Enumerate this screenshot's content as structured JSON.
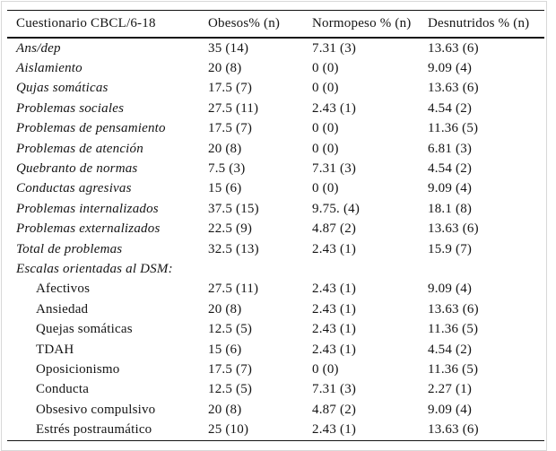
{
  "page": {
    "background_color": "#ffffff",
    "frame_color": "#d8d8d8",
    "rule_color": "#141414",
    "text_color": "#141414"
  },
  "table": {
    "columns": [
      {
        "label": "Cuestionario CBCL/6-18"
      },
      {
        "label": "Obesos% (n)"
      },
      {
        "label": "Normopeso % (n)"
      },
      {
        "label": "Desnutridos % (n)"
      }
    ],
    "rows": [
      {
        "label": "Ans/dep",
        "italic": true,
        "indent": false,
        "values": [
          "35 (14)",
          "7.31 (3)",
          "13.63 (6)"
        ]
      },
      {
        "label": "Aislamiento",
        "italic": true,
        "indent": false,
        "values": [
          "20 (8)",
          "0 (0)",
          "9.09 (4)"
        ]
      },
      {
        "label": "Qujas somáticas",
        "italic": true,
        "indent": false,
        "values": [
          "17.5 (7)",
          "0 (0)",
          "13.63 (6)"
        ]
      },
      {
        "label": "Problemas sociales",
        "italic": true,
        "indent": false,
        "values": [
          "27.5 (11)",
          "2.43 (1)",
          "4.54 (2)"
        ]
      },
      {
        "label": "Problemas de pensamiento",
        "italic": true,
        "indent": false,
        "values": [
          "17.5 (7)",
          "0 (0)",
          "11.36 (5)"
        ]
      },
      {
        "label": "Problemas de atención",
        "italic": true,
        "indent": false,
        "values": [
          "20 (8)",
          "0 (0)",
          "6.81 (3)"
        ]
      },
      {
        "label": "Quebranto de normas",
        "italic": true,
        "indent": false,
        "values": [
          "7.5 (3)",
          "7.31 (3)",
          "4.54 (2)"
        ]
      },
      {
        "label": "Conductas agresivas",
        "italic": true,
        "indent": false,
        "values": [
          "15 (6)",
          "0 (0)",
          "9.09 (4)"
        ]
      },
      {
        "label": "Problemas internalizados",
        "italic": true,
        "indent": false,
        "values": [
          "37.5 (15)",
          "9.75. (4)",
          "18.1 (8)"
        ]
      },
      {
        "label": "Problemas externalizados",
        "italic": true,
        "indent": false,
        "values": [
          "22.5 (9)",
          "4.87 (2)",
          "13.63 (6)"
        ]
      },
      {
        "label": "Total de problemas",
        "italic": true,
        "indent": false,
        "values": [
          "32.5 (13)",
          "2.43 (1)",
          "15.9 (7)"
        ]
      },
      {
        "label": "Escalas orientadas al DSM:",
        "italic": true,
        "indent": false,
        "values": [
          "",
          "",
          ""
        ]
      },
      {
        "label": "Afectivos",
        "italic": false,
        "indent": true,
        "values": [
          "27.5 (11)",
          "2.43 (1)",
          "9.09 (4)"
        ]
      },
      {
        "label": "Ansiedad",
        "italic": false,
        "indent": true,
        "values": [
          "20 (8)",
          "2.43 (1)",
          "13.63 (6)"
        ]
      },
      {
        "label": "Quejas somáticas",
        "italic": false,
        "indent": true,
        "values": [
          "12.5 (5)",
          "2.43 (1)",
          "11.36 (5)"
        ]
      },
      {
        "label": "TDAH",
        "italic": false,
        "indent": true,
        "values": [
          "15 (6)",
          "2.43 (1)",
          "4.54 (2)"
        ]
      },
      {
        "label": "Oposicionismo",
        "italic": false,
        "indent": true,
        "values": [
          "17.5 (7)",
          "0 (0)",
          "11.36 (5)"
        ]
      },
      {
        "label": "Conducta",
        "italic": false,
        "indent": true,
        "values": [
          "12.5 (5)",
          "7.31 (3)",
          "2.27 (1)"
        ]
      },
      {
        "label": "Obsesivo compulsivo",
        "italic": false,
        "indent": true,
        "values": [
          "20 (8)",
          "4.87 (2)",
          "9.09 (4)"
        ]
      },
      {
        "label": "Estrés postraumático",
        "italic": false,
        "indent": true,
        "values": [
          "25 (10)",
          "2.43 (1)",
          "13.63 (6)"
        ]
      }
    ]
  }
}
